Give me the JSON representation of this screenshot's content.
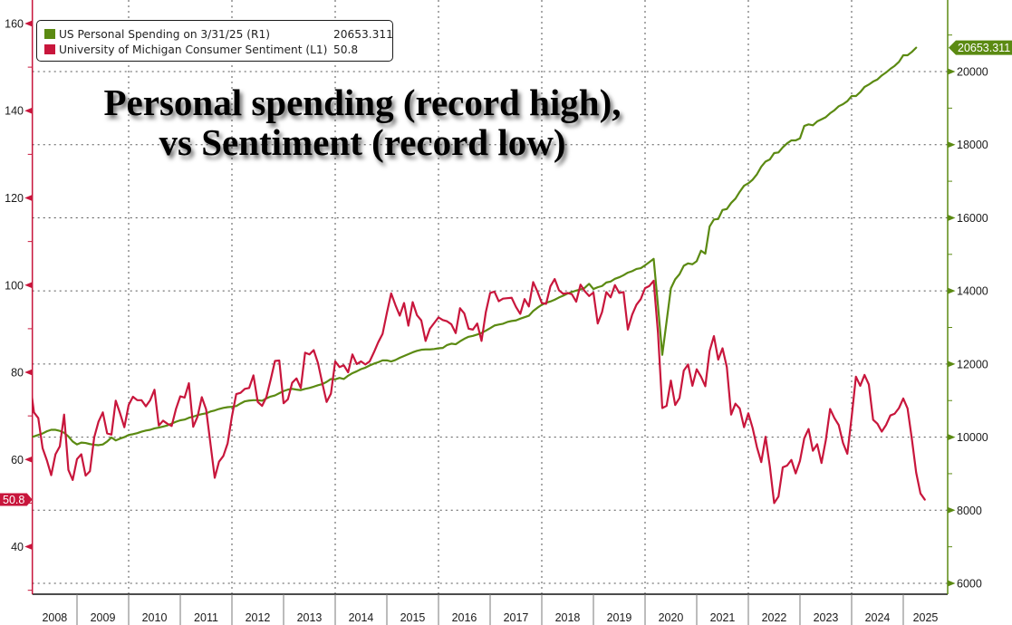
{
  "title": {
    "line1": "Personal spending (record high),",
    "line2": "vs Sentiment (record low)"
  },
  "legend": {
    "items": [
      {
        "label": "US Personal Spending on 3/31/25 (R1)",
        "value": "20653.311",
        "color": "#5b8a12"
      },
      {
        "label": "University of Michigan Consumer Sentiment (L1)",
        "value": "50.8",
        "color": "#c8163c"
      }
    ]
  },
  "chart_data": {
    "type": "line",
    "title": "Personal spending (record high), vs Sentiment (record low)",
    "xlabel": "",
    "ylabel_left": "",
    "ylabel_right": "",
    "frequency": "monthly",
    "xlim": [
      2008.135,
      2025.86
    ],
    "x_labels": [
      "2008",
      "2009",
      "2010",
      "2011",
      "2012",
      "2013",
      "2014",
      "2015",
      "2016",
      "2017",
      "2018",
      "2019",
      "2020",
      "2021",
      "2022",
      "2023",
      "2024",
      "2025"
    ],
    "x_gridlines": [
      2010,
      2012,
      2014,
      2016,
      2018,
      2020,
      2022,
      2024
    ],
    "grid": true,
    "legend_position": "top-left",
    "y_left": {
      "ticks": [
        "40",
        "60",
        "80",
        "100",
        "120",
        "140",
        "160"
      ],
      "minor_ticks": [
        30,
        50,
        70,
        90,
        110,
        130,
        150
      ],
      "range": [
        29.1,
        165.4
      ],
      "color": "#c8163c"
    },
    "y_right": {
      "ticks": [
        "6000",
        "8000",
        "10000",
        "12000",
        "14000",
        "16000",
        "18000",
        "20000"
      ],
      "minor_ticks": [
        7000,
        9000,
        11000,
        13000,
        15000,
        17000,
        19000,
        21000
      ],
      "range": [
        5703,
        21958
      ],
      "color": "#5b8a12"
    },
    "series": [
      {
        "name": "US Personal Spending on 3/31/25 (R1)",
        "axis": "right",
        "color": "#5b8a12",
        "start": "2008-01",
        "last_value": "20653.311",
        "values": [
          10000,
          10020,
          10060,
          10100,
          10160,
          10200,
          10200,
          10170,
          10120,
          10020,
          9880,
          9800,
          9850,
          9840,
          9810,
          9790,
          9780,
          9800,
          9880,
          9990,
          9910,
          9960,
          10000,
          10060,
          10080,
          10110,
          10150,
          10180,
          10200,
          10240,
          10260,
          10290,
          10320,
          10370,
          10420,
          10460,
          10480,
          10530,
          10560,
          10600,
          10630,
          10650,
          10700,
          10730,
          10770,
          10800,
          10820,
          10830,
          10850,
          10920,
          10980,
          11000,
          11010,
          11010,
          10995,
          11060,
          11110,
          11140,
          11200,
          11260,
          11300,
          11320,
          11300,
          11285,
          11320,
          11345,
          11380,
          11420,
          11450,
          11510,
          11590,
          11580,
          11620,
          11590,
          11680,
          11750,
          11800,
          11860,
          11900,
          11960,
          12010,
          12050,
          12100,
          12100,
          12070,
          12110,
          12170,
          12220,
          12270,
          12320,
          12360,
          12390,
          12400,
          12400,
          12410,
          12430,
          12440,
          12520,
          12557,
          12540,
          12620,
          12690,
          12746,
          12770,
          12806,
          12850,
          12912,
          12980,
          13053,
          13080,
          13102,
          13150,
          13177,
          13192,
          13240,
          13280,
          13320,
          13449,
          13540,
          13620,
          13673,
          13710,
          13760,
          13820,
          13870,
          13928,
          13970,
          14010,
          14040,
          14085,
          14193,
          14052,
          14100,
          14134,
          14230,
          14257,
          14330,
          14374,
          14430,
          14500,
          14540,
          14600,
          14622,
          14700,
          14787,
          14877,
          13600,
          12250,
          13160,
          14069,
          14317,
          14456,
          14689,
          14753,
          14729,
          14813,
          15100,
          15019,
          15762,
          15953,
          15968,
          16215,
          16240,
          16406,
          16523,
          16712,
          16877,
          16944,
          17043,
          17191,
          17398,
          17539,
          17596,
          17770,
          17787,
          17926,
          18035,
          18117,
          18117,
          18174,
          18513,
          18555,
          18530,
          18637,
          18694,
          18753,
          18860,
          18942,
          19051,
          19108,
          19190,
          19331,
          19331,
          19437,
          19579,
          19645,
          19727,
          19784,
          19893,
          19975,
          20074,
          20156,
          20265,
          20446,
          20446,
          20538,
          20653.311
        ]
      },
      {
        "name": "University of Michigan Consumer Sentiment (L1)",
        "axis": "left",
        "color": "#c8163c",
        "start": "2008-01",
        "last_value": "50.8",
        "values": [
          78.4,
          70.8,
          69.5,
          62.6,
          59.8,
          56.4,
          61.2,
          63.0,
          70.3,
          57.6,
          55.3,
          60.1,
          61.2,
          56.3,
          57.3,
          65.1,
          68.7,
          70.8,
          66.0,
          65.7,
          73.5,
          70.6,
          67.4,
          72.5,
          74.4,
          73.6,
          73.6,
          72.2,
          73.6,
          76.0,
          67.8,
          68.9,
          68.2,
          67.7,
          71.6,
          74.5,
          74.2,
          77.5,
          67.5,
          69.8,
          74.3,
          71.5,
          63.7,
          55.8,
          59.5,
          60.8,
          63.7,
          69.9,
          75.0,
          75.3,
          76.2,
          76.4,
          79.3,
          73.2,
          72.3,
          74.3,
          78.3,
          82.6,
          82.7,
          72.9,
          73.8,
          77.6,
          78.6,
          76.4,
          84.5,
          84.1,
          85.1,
          82.1,
          77.5,
          73.2,
          75.1,
          82.5,
          81.2,
          81.6,
          80.0,
          84.1,
          81.9,
          82.5,
          81.8,
          82.5,
          84.6,
          86.9,
          88.8,
          93.6,
          98.1,
          95.4,
          93.0,
          95.9,
          90.7,
          96.1,
          93.1,
          91.9,
          87.2,
          90.0,
          91.3,
          92.6,
          92.0,
          91.7,
          91.0,
          89.0,
          94.7,
          93.5,
          90.0,
          89.8,
          91.2,
          87.2,
          93.8,
          98.2,
          98.5,
          96.3,
          96.9,
          97.0,
          97.1,
          95.0,
          93.4,
          96.8,
          95.1,
          100.7,
          98.5,
          95.9,
          95.7,
          99.7,
          101.4,
          98.8,
          98.0,
          98.2,
          97.9,
          96.2,
          100.1,
          98.6,
          97.5,
          98.3,
          91.2,
          93.8,
          98.4,
          97.2,
          100.0,
          98.2,
          98.4,
          89.8,
          93.2,
          95.5,
          96.8,
          99.3,
          99.8,
          101.0,
          89.1,
          71.8,
          72.3,
          78.1,
          72.5,
          74.1,
          80.4,
          81.8,
          76.9,
          80.7,
          79.0,
          76.8,
          84.9,
          88.3,
          82.9,
          85.5,
          81.2,
          70.3,
          72.8,
          71.7,
          67.4,
          70.6,
          67.2,
          62.8,
          59.4,
          65.2,
          58.4,
          50.0,
          51.5,
          58.2,
          58.6,
          59.9,
          56.8,
          59.7,
          64.9,
          67.0,
          62.0,
          63.5,
          59.2,
          64.4,
          71.6,
          69.5,
          67.9,
          63.8,
          61.3,
          69.7,
          79.0,
          76.9,
          79.4,
          77.2,
          69.1,
          68.2,
          66.4,
          67.9,
          70.1,
          70.5,
          71.8,
          74.0,
          71.7,
          64.7,
          57.0,
          52.2,
          50.8
        ]
      }
    ]
  }
}
